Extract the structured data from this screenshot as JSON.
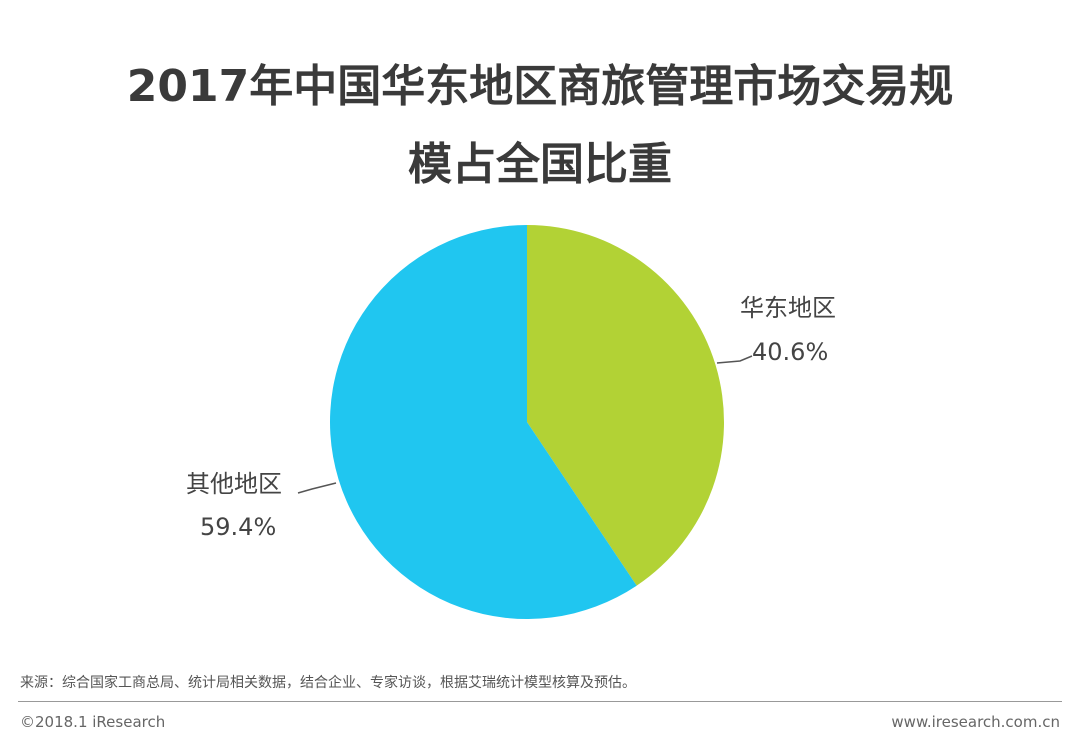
{
  "chart_data": {
    "type": "pie",
    "title": "2017年中国华东地区商旅管理市场交易规模占全国比重",
    "title_lines": [
      "2017年中国华东地区商旅管理市场交易规",
      "模占全国比重"
    ],
    "slices": [
      {
        "name": "华东地区",
        "value": 40.6,
        "label": "40.6%",
        "color": "#b2d235"
      },
      {
        "name": "其他地区",
        "value": 59.4,
        "label": "59.4%",
        "color": "#20c6f0"
      }
    ],
    "start_angle_deg": 0,
    "direction": "clockwise"
  },
  "footer": {
    "source": "来源：综合国家工商总局、统计局相关数据，结合企业、专家访谈，根据艾瑞统计模型核算及预估。",
    "copyright": "©2018.1 iResearch",
    "website": "www.iresearch.com.cn"
  }
}
